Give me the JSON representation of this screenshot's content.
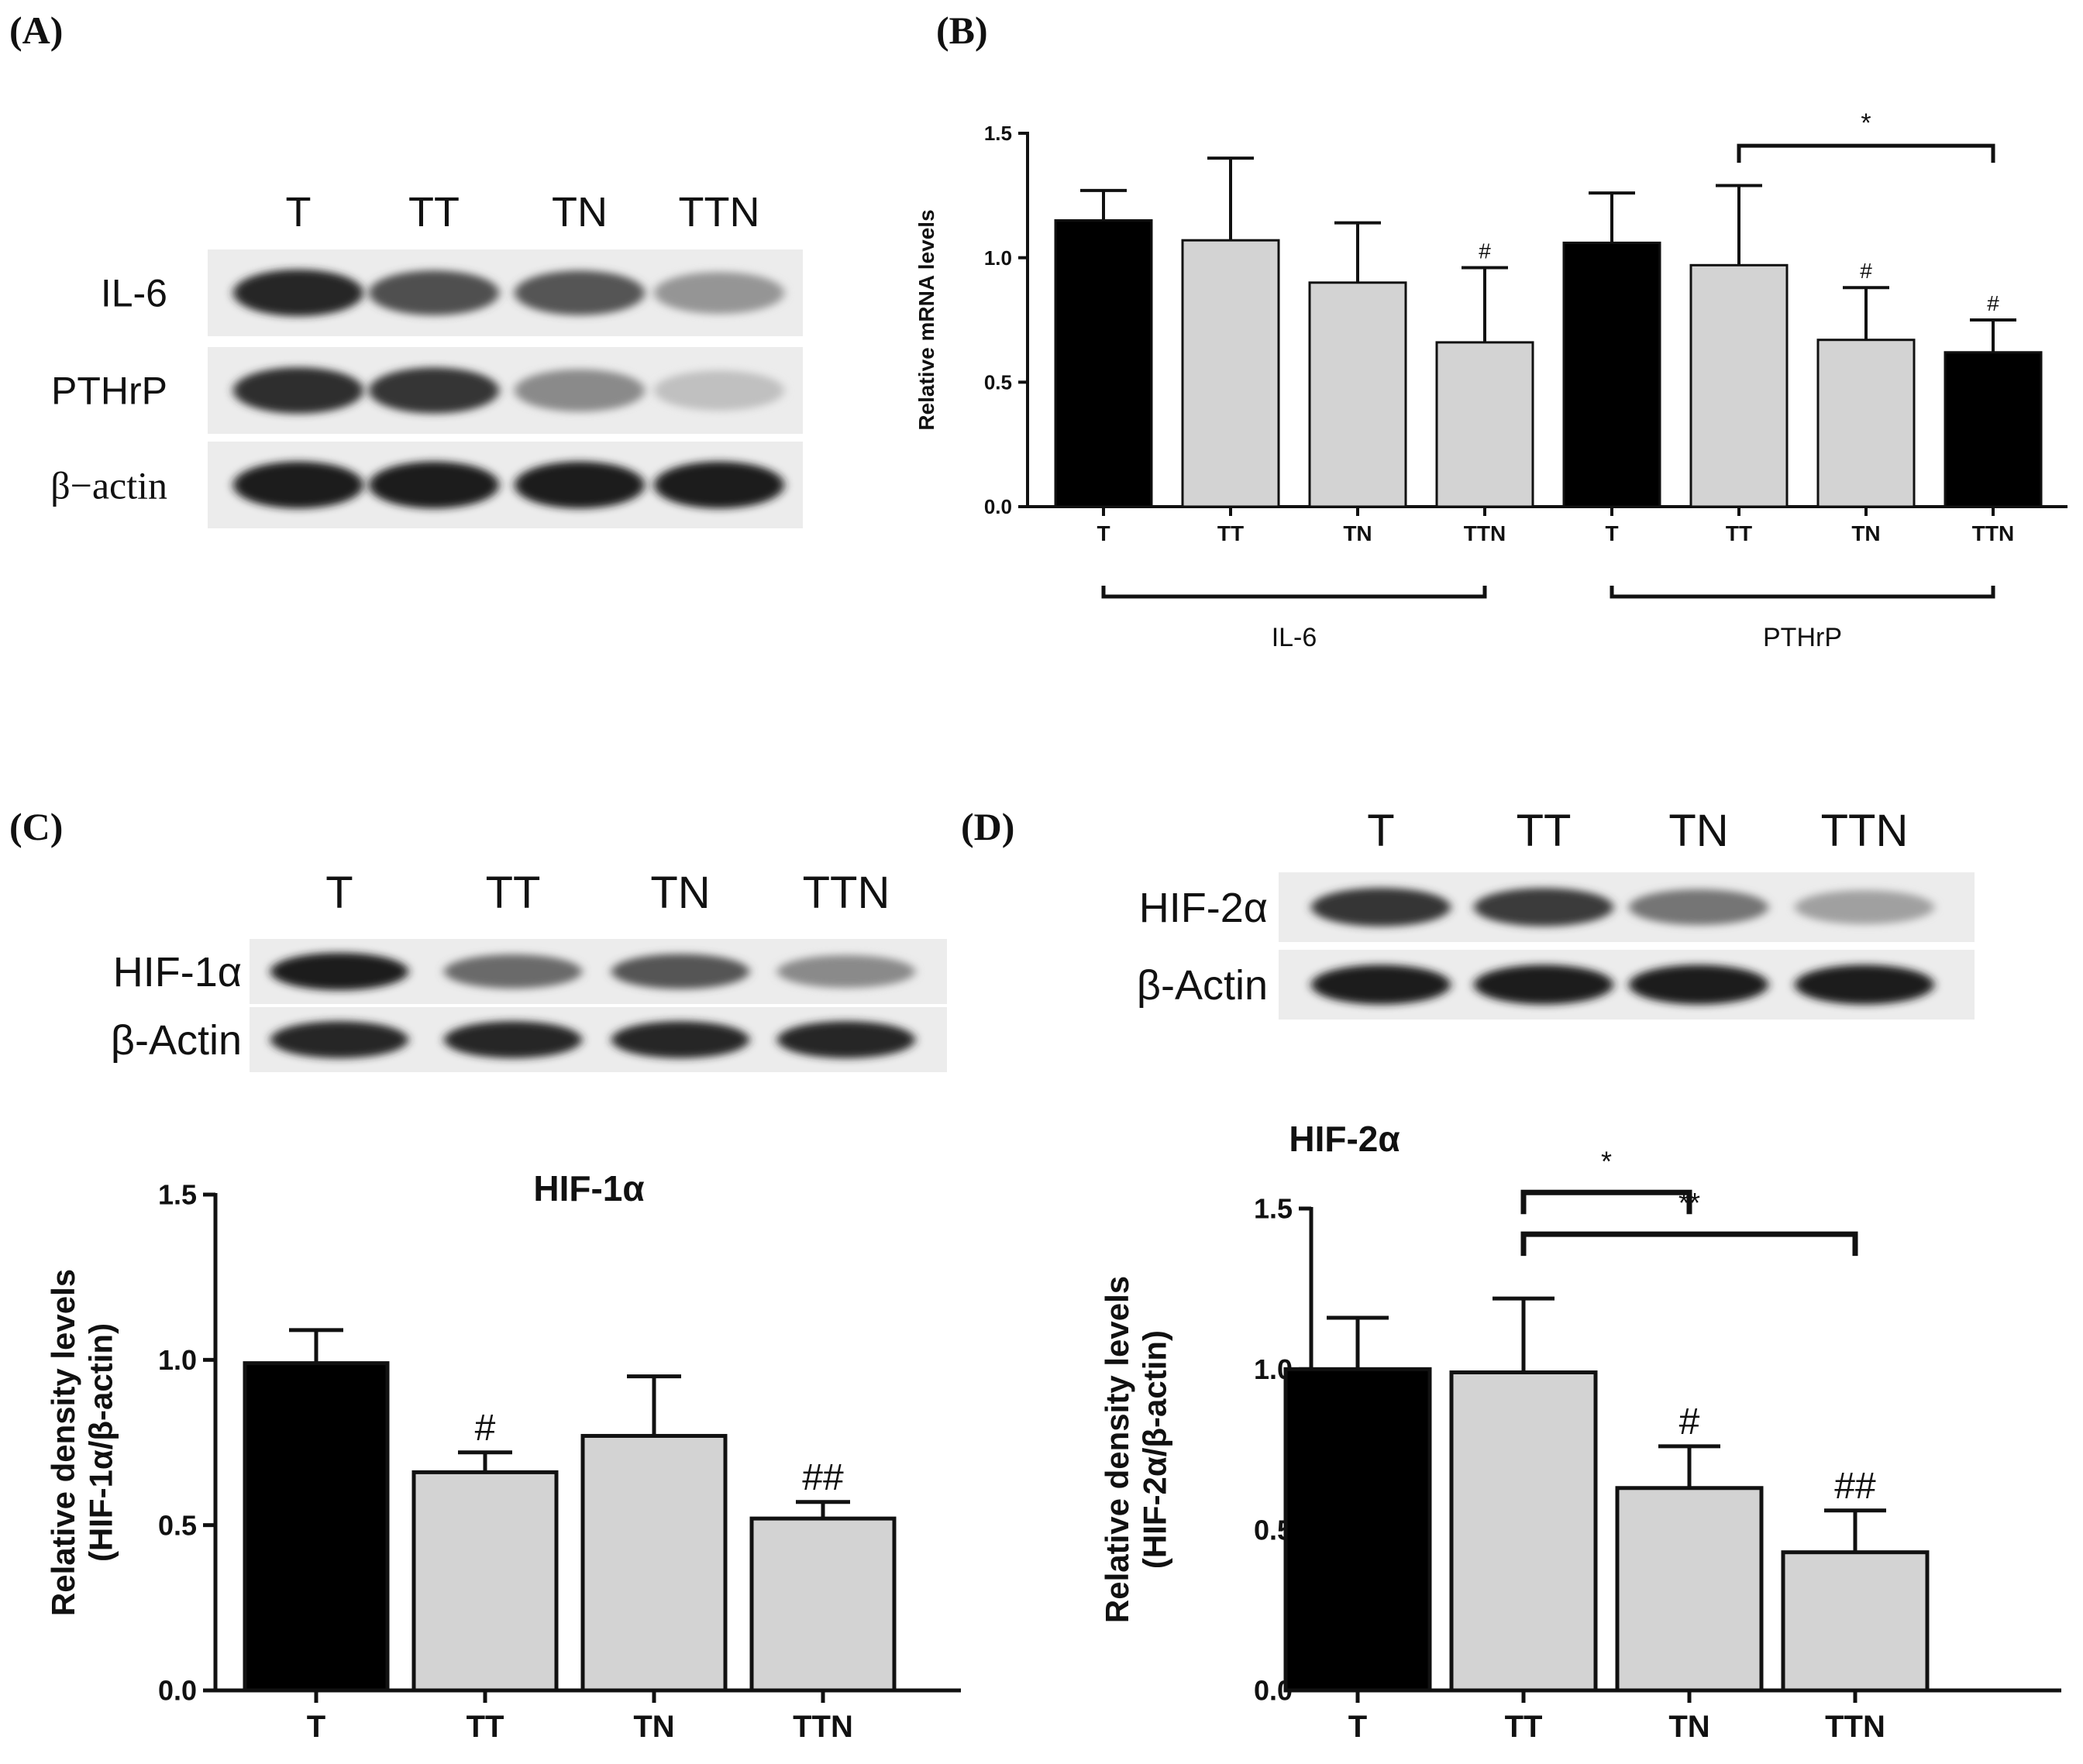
{
  "panels": {
    "a": "(A)",
    "b": "(B)",
    "c": "(C)",
    "d": "(D)"
  },
  "blot_a": {
    "lanes": [
      "T",
      "TT",
      "TN",
      "TTN"
    ],
    "rows": [
      {
        "label": "IL-6",
        "intensity": [
          0.92,
          0.72,
          0.7,
          0.4
        ]
      },
      {
        "label": "PTHrP",
        "intensity": [
          0.88,
          0.85,
          0.45,
          0.2
        ]
      },
      {
        "label": "β−actin",
        "intensity": [
          0.95,
          0.95,
          0.95,
          0.95
        ]
      }
    ]
  },
  "blot_c": {
    "lanes": [
      "T",
      "TT",
      "TN",
      "TTN"
    ],
    "rows": [
      {
        "label": "HIF-1α",
        "intensity": [
          0.95,
          0.6,
          0.7,
          0.45
        ]
      },
      {
        "label": "β-Actin",
        "intensity": [
          0.92,
          0.92,
          0.92,
          0.92
        ]
      }
    ]
  },
  "blot_d": {
    "lanes": [
      "T",
      "TT",
      "TN",
      "TTN"
    ],
    "rows": [
      {
        "label": "HIF-2α",
        "intensity": [
          0.85,
          0.82,
          0.55,
          0.35
        ]
      },
      {
        "label": "β-Actin",
        "intensity": [
          0.97,
          0.97,
          0.97,
          0.97
        ]
      }
    ]
  },
  "colors": {
    "black_bar": "#000000",
    "gray_bar": "#d3d3d3",
    "axis": "#111111"
  },
  "chart_data": [
    {
      "id": "B",
      "type": "bar",
      "title": "",
      "ylabel": "Relative mRNA levels",
      "xlabel": "",
      "ylim": [
        0,
        1.5
      ],
      "yticks": [
        "0.0",
        "0.5",
        "1.0",
        "1.5"
      ],
      "yticks_values": [
        0,
        0.5,
        1.0,
        1.5
      ],
      "categories": [
        "T",
        "TT",
        "TN",
        "TTN",
        "T",
        "TT",
        "TN",
        "TTN"
      ],
      "values": [
        1.15,
        1.07,
        0.9,
        0.66,
        1.06,
        0.97,
        0.67,
        0.62
      ],
      "errors": [
        0.12,
        0.33,
        0.24,
        0.3,
        0.2,
        0.32,
        0.21,
        0.13
      ],
      "bar_colors": [
        "black",
        "gray",
        "gray",
        "gray",
        "black",
        "gray",
        "gray",
        "black"
      ],
      "annotations": [
        "",
        "",
        "",
        "#",
        "",
        "",
        "#",
        "#"
      ],
      "groups": [
        {
          "label": "IL-6",
          "from": 0,
          "to": 3
        },
        {
          "label": "PTHrP",
          "from": 4,
          "to": 7
        }
      ],
      "brackets": [
        {
          "from": 5,
          "to": 7,
          "label": "*",
          "level": 1.45
        }
      ]
    },
    {
      "id": "C",
      "type": "bar",
      "title": "HIF-1α",
      "ylabel": "Relative density levels",
      "ylabel2": "(HIF-1α/β-actin)",
      "xlabel": "",
      "ylim": [
        0,
        1.5
      ],
      "yticks": [
        "0.0",
        "0.5",
        "1.0",
        "1.5"
      ],
      "yticks_values": [
        0,
        0.5,
        1.0,
        1.5
      ],
      "categories": [
        "T",
        "TT",
        "TN",
        "TTN"
      ],
      "values": [
        0.99,
        0.66,
        0.77,
        0.52
      ],
      "errors": [
        0.1,
        0.06,
        0.18,
        0.05
      ],
      "bar_colors": [
        "black",
        "gray",
        "gray",
        "gray"
      ],
      "annotations": [
        "",
        "#",
        "",
        "##"
      ],
      "brackets": []
    },
    {
      "id": "D",
      "type": "bar",
      "title": "HIF-2α",
      "ylabel": "Relative density levels",
      "ylabel2": "(HIF-2α/β-actin)",
      "xlabel": "",
      "ylim": [
        0,
        1.5
      ],
      "yticks": [
        "0.0",
        "0.5",
        "1.0",
        "1.5"
      ],
      "yticks_values": [
        0,
        0.5,
        1.0,
        1.5
      ],
      "categories": [
        "T",
        "TT",
        "TN",
        "TTN"
      ],
      "values": [
        1.0,
        0.99,
        0.63,
        0.43
      ],
      "errors": [
        0.16,
        0.23,
        0.13,
        0.13
      ],
      "bar_colors": [
        "black",
        "gray",
        "gray",
        "gray"
      ],
      "annotations": [
        "",
        "",
        "#",
        "##"
      ],
      "brackets": [
        {
          "from": 1,
          "to": 2,
          "label": "*",
          "level": 1.55
        },
        {
          "from": 1,
          "to": 3,
          "label": "**",
          "level": 1.42
        }
      ]
    }
  ]
}
